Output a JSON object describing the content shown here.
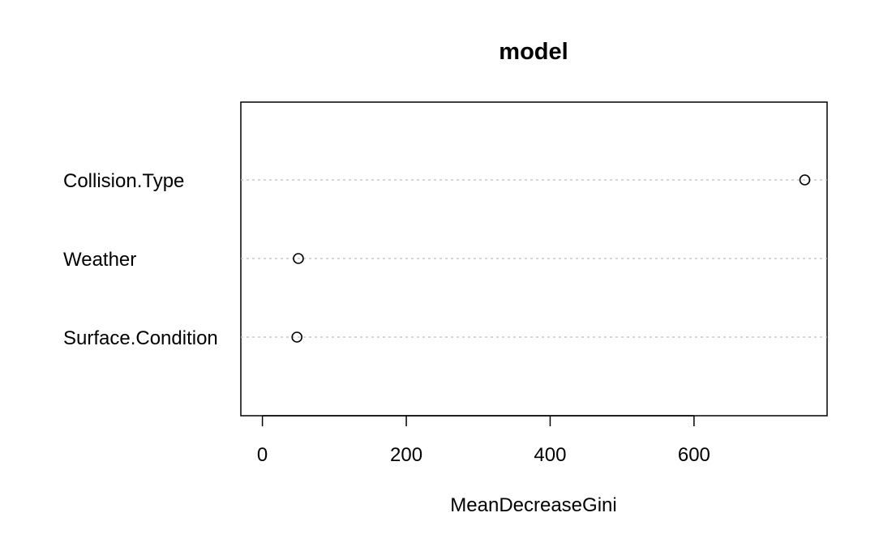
{
  "chart_data": {
    "type": "scatter",
    "title": "model",
    "xlabel": "MeanDecreaseGini",
    "ylabel": "",
    "categories": [
      "Surface.Condition",
      "Weather",
      "Collision.Type"
    ],
    "values": [
      48,
      50,
      754
    ],
    "x_ticks": [
      0,
      200,
      400,
      600
    ],
    "xlim": [
      -30,
      785
    ],
    "grid": "dotted horizontal guide lines",
    "legend": "none",
    "colors": {
      "point_stroke": "#000000",
      "guide_line": "#bdbdbd",
      "frame": "#000000"
    }
  }
}
